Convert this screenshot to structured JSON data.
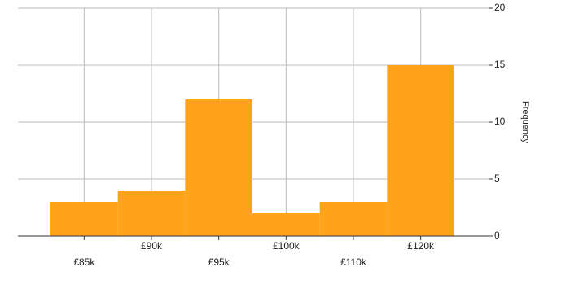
{
  "chart_data": {
    "type": "bar",
    "y_label": "Frequency",
    "categories": [
      "£85k",
      "£90k",
      "£95k",
      "£100k",
      "£110k",
      "£120k"
    ],
    "values": [
      3,
      4,
      12,
      2,
      3,
      15
    ],
    "color": "#ffa31a",
    "ylim": [
      0,
      20
    ],
    "yticks": [
      0,
      5,
      10,
      15,
      20
    ],
    "grid": true
  }
}
